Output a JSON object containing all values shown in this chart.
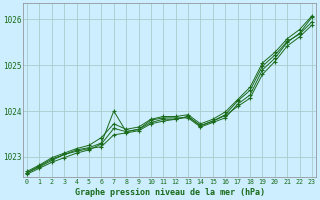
{
  "title": "Graphe pression niveau de la mer (hPa)",
  "bg_color": "#cceeff",
  "grid_color": "#aacccc",
  "line_color": "#1a6b1a",
  "marker_color": "#1a6b1a",
  "xlim": [
    -0.3,
    23.3
  ],
  "ylim": [
    1022.55,
    1026.35
  ],
  "yticks": [
    1023,
    1024,
    1025,
    1026
  ],
  "xticks": [
    0,
    1,
    2,
    3,
    4,
    5,
    6,
    7,
    8,
    9,
    10,
    11,
    12,
    13,
    14,
    15,
    16,
    17,
    18,
    19,
    20,
    21,
    22,
    23
  ],
  "series": [
    [
      1022.65,
      1022.8,
      1022.95,
      1023.05,
      1023.15,
      1023.2,
      1023.3,
      1024.0,
      1023.55,
      1023.6,
      1023.8,
      1023.85,
      1023.85,
      1023.85,
      1023.65,
      1023.75,
      1023.85,
      1024.15,
      1024.35,
      1024.9,
      1025.15,
      1025.5,
      1025.7,
      1026.05
    ],
    [
      1022.65,
      1022.78,
      1022.92,
      1023.05,
      1023.12,
      1023.18,
      1023.22,
      1023.48,
      1023.52,
      1023.57,
      1023.72,
      1023.78,
      1023.82,
      1023.88,
      1023.68,
      1023.78,
      1023.9,
      1024.1,
      1024.28,
      1024.8,
      1025.08,
      1025.42,
      1025.62,
      1025.88
    ],
    [
      1022.68,
      1022.82,
      1022.98,
      1023.08,
      1023.18,
      1023.25,
      1023.42,
      1023.72,
      1023.6,
      1023.65,
      1023.82,
      1023.88,
      1023.88,
      1023.92,
      1023.72,
      1023.82,
      1023.98,
      1024.25,
      1024.52,
      1025.05,
      1025.28,
      1025.58,
      1025.78,
      1026.08
    ],
    [
      1022.62,
      1022.75,
      1022.88,
      1022.98,
      1023.08,
      1023.15,
      1023.28,
      1023.62,
      1023.55,
      1023.6,
      1023.75,
      1023.82,
      1023.82,
      1023.88,
      1023.68,
      1023.78,
      1023.92,
      1024.22,
      1024.45,
      1024.98,
      1025.22,
      1025.52,
      1025.68,
      1025.95
    ]
  ]
}
